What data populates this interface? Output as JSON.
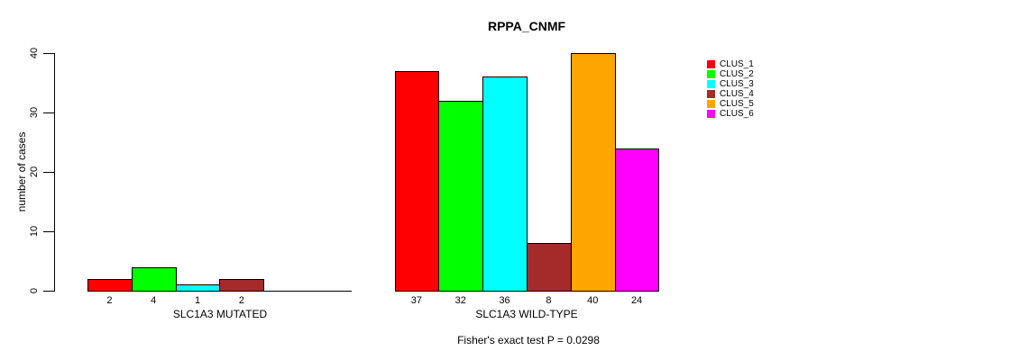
{
  "title": "RPPA_CNMF",
  "footer": "Fisher's exact test P = 0.0298",
  "y_axis": {
    "label": "number of cases",
    "tick_labels": [
      "0",
      "10",
      "20",
      "30",
      "40"
    ]
  },
  "legend": {
    "items": [
      {
        "label": "CLUS_1",
        "color": "#FF0000"
      },
      {
        "label": "CLUS_2",
        "color": "#00FF00"
      },
      {
        "label": "CLUS_3",
        "color": "#00FFFF"
      },
      {
        "label": "CLUS_4",
        "color": "#A52A2A"
      },
      {
        "label": "CLUS_5",
        "color": "#FFA500"
      },
      {
        "label": "CLUS_6",
        "color": "#FF00FF"
      }
    ]
  },
  "chart_data": {
    "type": "bar",
    "title": "RPPA_CNMF",
    "xlabel": "",
    "ylabel": "number of cases",
    "ylim": [
      0,
      40
    ],
    "yticks": [
      0,
      10,
      20,
      30,
      40
    ],
    "grid": false,
    "legend_position": "right",
    "series": [
      "CLUS_1",
      "CLUS_2",
      "CLUS_3",
      "CLUS_4",
      "CLUS_5",
      "CLUS_6"
    ],
    "colors": [
      "#FF0000",
      "#00FF00",
      "#00FFFF",
      "#A52A2A",
      "#FFA500",
      "#FF00FF"
    ],
    "groups": [
      {
        "category": "SLC1A3 MUTATED",
        "values": [
          2,
          4,
          1,
          2,
          0,
          0
        ]
      },
      {
        "category": "SLC1A3 WILD-TYPE",
        "values": [
          37,
          32,
          36,
          8,
          40,
          24
        ]
      }
    ],
    "annotation": "Fisher's exact test P = 0.0298"
  }
}
